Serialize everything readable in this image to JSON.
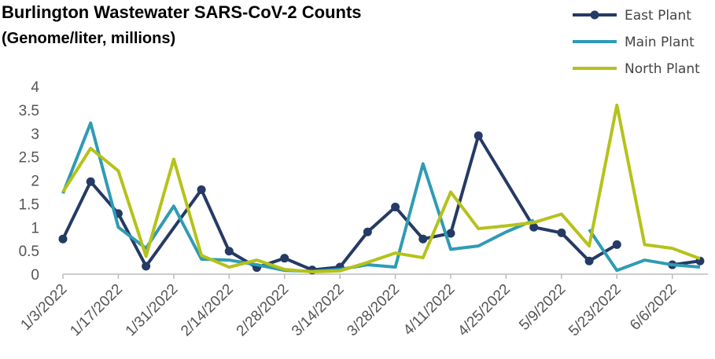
{
  "chart_data": {
    "type": "line",
    "title": "Burlington Wastewater SARS-CoV-2 Counts",
    "subtitle": "(Genome/liter, millions)",
    "xlim": [
      "2022-01-03",
      "2022-06-15"
    ],
    "xticks": [
      {
        "value": "2022-01-03",
        "label": "1/3/2022"
      },
      {
        "value": "2022-01-17",
        "label": "1/17/2022"
      },
      {
        "value": "2022-01-31",
        "label": "1/31/2022"
      },
      {
        "value": "2022-02-14",
        "label": "2/14/2022"
      },
      {
        "value": "2022-02-28",
        "label": "2/28/2022"
      },
      {
        "value": "2022-03-14",
        "label": "3/14/2022"
      },
      {
        "value": "2022-03-28",
        "label": "3/28/2022"
      },
      {
        "value": "2022-04-11",
        "label": "4/11/2022"
      },
      {
        "value": "2022-04-25",
        "label": "4/25/2022"
      },
      {
        "value": "2022-05-09",
        "label": "5/9/2022"
      },
      {
        "value": "2022-05-23",
        "label": "5/23/2022"
      },
      {
        "value": "2022-06-06",
        "label": "6/6/2022"
      }
    ],
    "ylim": [
      0,
      4
    ],
    "yticks": [
      0,
      0.5,
      1,
      1.5,
      2,
      2.5,
      3,
      3.5,
      4
    ],
    "legend": "top-right",
    "series": [
      {
        "name": "East Plant",
        "color": "#253a64",
        "markers": true,
        "x": [
          "2022-01-03",
          "2022-01-10",
          "2022-01-17",
          "2022-01-24",
          "2022-02-07",
          "2022-02-14",
          "2022-02-21",
          "2022-02-28",
          "2022-03-07",
          "2022-03-14",
          "2022-03-21",
          "2022-03-28",
          "2022-04-04",
          "2022-04-11",
          "2022-04-18",
          "2022-05-02",
          "2022-05-09",
          "2022-05-16",
          "2022-05-23",
          "2022-05-30",
          "2022-06-06",
          "2022-06-13"
        ],
        "values": [
          0.75,
          1.97,
          1.29,
          0.17,
          1.8,
          0.49,
          0.14,
          0.34,
          0.09,
          0.15,
          0.9,
          1.43,
          0.75,
          0.87,
          2.95,
          1.0,
          0.88,
          0.28,
          0.63,
          null,
          0.2,
          0.28
        ]
      },
      {
        "name": "Main Plant",
        "color": "#2f9bb5",
        "markers": false,
        "x": [
          "2022-01-03",
          "2022-01-10",
          "2022-01-17",
          "2022-01-24",
          "2022-01-31",
          "2022-02-07",
          "2022-02-14",
          "2022-02-21",
          "2022-02-28",
          "2022-03-07",
          "2022-03-14",
          "2022-03-21",
          "2022-03-28",
          "2022-04-04",
          "2022-04-11",
          "2022-04-18",
          "2022-04-25",
          "2022-05-02",
          "2022-05-09",
          "2022-05-16",
          "2022-05-23",
          "2022-05-30",
          "2022-06-06",
          "2022-06-13"
        ],
        "values": [
          1.72,
          3.22,
          1.0,
          0.55,
          1.45,
          0.32,
          0.3,
          0.2,
          0.08,
          0.06,
          0.1,
          0.2,
          0.15,
          2.35,
          0.53,
          0.6,
          0.9,
          1.15,
          null,
          0.95,
          0.08,
          0.3,
          0.2,
          0.15
        ]
      },
      {
        "name": "North Plant",
        "color": "#b5c21a",
        "markers": false,
        "x": [
          "2022-01-03",
          "2022-01-10",
          "2022-01-17",
          "2022-01-24",
          "2022-01-31",
          "2022-02-07",
          "2022-02-14",
          "2022-02-21",
          "2022-02-28",
          "2022-03-07",
          "2022-03-14",
          "2022-03-21",
          "2022-03-28",
          "2022-04-04",
          "2022-04-11",
          "2022-04-18",
          "2022-04-25",
          "2022-05-02",
          "2022-05-09",
          "2022-05-16",
          "2022-05-23",
          "2022-05-30",
          "2022-06-06",
          "2022-06-13"
        ],
        "values": [
          1.75,
          2.68,
          2.2,
          0.38,
          2.45,
          0.4,
          0.15,
          0.3,
          0.1,
          0.05,
          0.07,
          0.25,
          0.45,
          0.35,
          1.75,
          0.97,
          1.03,
          1.1,
          1.28,
          0.6,
          3.6,
          0.63,
          0.55,
          0.33
        ]
      }
    ]
  }
}
